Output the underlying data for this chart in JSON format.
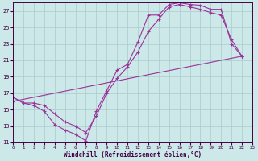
{
  "xlabel": "Windchill (Refroidissement éolien,°C)",
  "background_color": "#cce8e8",
  "grid_color": "#aacccc",
  "line_color": "#993399",
  "xlim": [
    0,
    23
  ],
  "ylim": [
    11,
    28
  ],
  "xticks": [
    0,
    1,
    2,
    3,
    4,
    5,
    6,
    7,
    8,
    9,
    10,
    11,
    12,
    13,
    14,
    15,
    16,
    17,
    18,
    19,
    20,
    21,
    22,
    23
  ],
  "yticks": [
    11,
    13,
    15,
    17,
    19,
    21,
    23,
    25,
    27
  ],
  "line1_x": [
    0,
    1,
    2,
    3,
    4,
    5,
    6,
    7,
    8,
    9,
    10,
    11,
    12,
    13,
    14,
    15,
    16,
    17,
    18,
    19,
    20,
    21,
    22
  ],
  "line1_y": [
    16.5,
    15.8,
    15.5,
    14.8,
    13.2,
    12.5,
    12.0,
    11.2,
    14.8,
    17.3,
    19.8,
    20.5,
    23.2,
    26.5,
    26.5,
    27.8,
    28.0,
    27.8,
    27.7,
    27.2,
    27.2,
    23.0,
    21.5
  ],
  "line2_x": [
    0,
    1,
    2,
    3,
    4,
    5,
    6,
    7,
    8,
    9,
    10,
    11,
    12,
    13,
    14,
    15,
    16,
    17,
    18,
    19,
    20,
    21,
    22
  ],
  "line2_y": [
    16.5,
    15.8,
    15.8,
    15.5,
    14.5,
    13.5,
    13.0,
    12.2,
    14.2,
    17.0,
    18.8,
    20.2,
    22.0,
    24.5,
    26.0,
    27.5,
    27.8,
    27.5,
    27.2,
    26.8,
    26.5,
    23.5,
    21.5
  ],
  "line3_x": [
    0,
    22
  ],
  "line3_y": [
    16.0,
    21.5
  ]
}
